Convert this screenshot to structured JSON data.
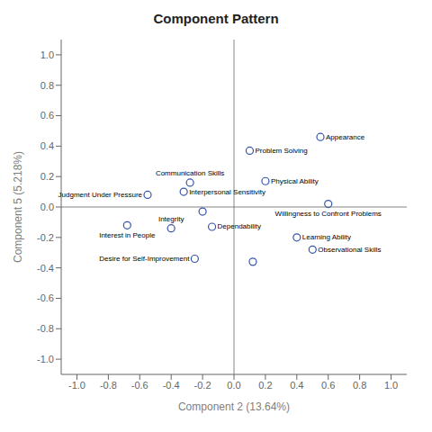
{
  "chart_data": {
    "type": "scatter",
    "title": "Component Pattern",
    "xlabel": "Component 2 (13.64%)",
    "ylabel": "Component 5 (5.218%)",
    "x": [
      0.55,
      0.1,
      0.2,
      -0.28,
      -0.32,
      0.6,
      -0.55,
      -0.2,
      -0.68,
      -0.4,
      -0.14,
      0.4,
      0.5,
      -0.25,
      0.12
    ],
    "values": [
      0.46,
      0.37,
      0.17,
      0.16,
      0.1,
      0.02,
      0.08,
      -0.03,
      -0.12,
      -0.14,
      -0.13,
      -0.2,
      -0.28,
      -0.34,
      -0.36
    ],
    "color": "#3355aa",
    "marker": "circle",
    "xlim": [
      -1.1,
      1.1
    ],
    "ylim": [
      -1.1,
      1.1
    ],
    "xticks": [
      {
        "value": -1.0,
        "label": "-1.0"
      },
      -0.8,
      -0.6,
      -0.4,
      -0.2,
      {
        "value": 0.0,
        "label": "0.0"
      },
      0.2,
      0.4,
      0.6,
      0.8,
      {
        "value": 1.0,
        "label": "1.0"
      }
    ],
    "yticks": [
      {
        "value": -1.0,
        "label": "-1.0"
      },
      -0.8,
      -0.6,
      -0.4,
      -0.2,
      {
        "value": 0.0,
        "label": "0.0"
      },
      0.2,
      0.4,
      0.6,
      0.8,
      {
        "value": 1.0,
        "label": "1.0"
      }
    ],
    "grid": false,
    "annotations": [
      {
        "text": "Appearance",
        "x": 0.55,
        "y": 0.46
      },
      {
        "text": "Problem Solving",
        "x": 0.1,
        "y": 0.37
      },
      {
        "text": "Physical Ability",
        "x": 0.2,
        "y": 0.17
      },
      {
        "text": "Communication Skills",
        "x": -0.28,
        "y": 0.16
      },
      {
        "text": "Interpersonal Sensitivity",
        "x": -0.32,
        "y": 0.1
      },
      {
        "text": "Willingness to Confront Problems",
        "x": 0.6,
        "y": 0.02
      },
      {
        "text": "Judgment Under Pressure",
        "x": -0.55,
        "y": 0.08
      },
      {
        "text": "Interest in People",
        "x": -0.68,
        "y": -0.12
      },
      {
        "text": "Integrity",
        "x": -0.4,
        "y": -0.14
      },
      {
        "text": "Dependability",
        "x": -0.14,
        "y": -0.13
      },
      {
        "text": "Learning Ability",
        "x": 0.4,
        "y": -0.2
      },
      {
        "text": "Observational Skills",
        "x": 0.5,
        "y": -0.28
      },
      {
        "text": "Desire for Self-Improvement",
        "x": -0.25,
        "y": -0.34
      }
    ]
  }
}
